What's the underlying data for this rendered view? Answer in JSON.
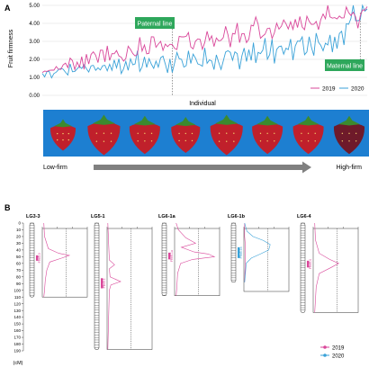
{
  "panels": {
    "a": "A",
    "b": "B"
  },
  "chart_data": [
    {
      "type": "line",
      "panel": "A",
      "ylabel": "Fruit firmness",
      "xlabel": "Individual",
      "ylim": [
        0,
        5
      ],
      "yticks": [
        "0.00",
        "1.00",
        "2.00",
        "3.00",
        "4.00",
        "5.00"
      ],
      "grid": "horizontal",
      "legend_position": "bottom-right",
      "annotations": {
        "paternal": "Paternal line",
        "maternal": "Maternal line"
      },
      "paternal_index": 56,
      "maternal_index": 137,
      "colors": {
        "2019": "#d9479a",
        "2020": "#3aa2d8",
        "label_bg": "#2ea75b"
      },
      "series": [
        {
          "name": "2019",
          "values": [
            1.27,
            1.35,
            1.33,
            1.39,
            1.4,
            1.4,
            1.6,
            1.45,
            1.44,
            1.7,
            1.79,
            1.54,
            2.07,
            1.93,
            1.43,
            1.85,
            1.56,
            2.15,
            1.45,
            2.29,
            1.74,
            2.28,
            2.42,
            2.23,
            1.82,
            2.51,
            2.51,
            1.86,
            2.75,
            1.94,
            2.32,
            2.31,
            2.49,
            2.19,
            2.12,
            1.9,
            2.05,
            2.73,
            2.55,
            2.32,
            2.19,
            2.28,
            3.23,
            2.46,
            2.8,
            2.31,
            2.34,
            3.26,
            3.25,
            2.67,
            2.85,
            3.0,
            2.5,
            2.85,
            2.71,
            2.84,
            2.82,
            2.61,
            2.55,
            3.28,
            3.25,
            3.25,
            3.28,
            3.49,
            2.69,
            2.58,
            3.01,
            3.14,
            3.11,
            2.56,
            2.94,
            3.56,
            3.06,
            3.31,
            2.71,
            3.19,
            3.03,
            3.06,
            3.21,
            3.84,
            3.37,
            2.68,
            3.44,
            3.41,
            4.02,
            2.93,
            3.43,
            3.43,
            2.93,
            3.13,
            3.9,
            3.86,
            4.36,
            3.96,
            3.17,
            3.3,
            3.4,
            3.72,
            3.74,
            3.16,
            3.48,
            4.01,
            3.68,
            3.84,
            4.19,
            3.98,
            3.69,
            4.09,
            3.67,
            4.23,
            3.77,
            4.38,
            3.8,
            3.65,
            4.4,
            4.12,
            3.94,
            3.95,
            4.11,
            3.65,
            4.21,
            4.52,
            4.26,
            5.0,
            4.36,
            4.29,
            4.32,
            4.25,
            4.41,
            4.3,
            4.31,
            4.91,
            4.6,
            4.44,
            4.62,
            4.36,
            3.73,
            4.42,
            4.75,
            4.73,
            4.93
          ]
        },
        {
          "name": "2020",
          "values": [
            1.22,
            1.03,
            1.32,
            1.32,
            0.97,
            1.21,
            1.29,
            1.43,
            1.5,
            1.45,
            1.28,
            1.13,
            1.75,
            1.31,
            1.33,
            1.47,
            1.61,
            1.49,
            1.7,
            1.48,
            1.3,
            1.64,
            1.67,
            1.39,
            1.53,
            1.41,
            1.64,
            1.67,
            1.36,
            1.73,
            1.39,
            1.97,
            1.53,
            2.03,
            1.21,
            1.47,
            1.89,
            1.39,
            2.03,
            1.7,
            1.75,
            2.48,
            1.33,
            1.58,
            2.14,
            1.55,
            2.04,
            1.73,
            1.5,
            1.9,
            1.57,
            2.09,
            2.18,
            1.74,
            1.25,
            2.03,
            1.27,
            1.8,
            2.38,
            2.04,
            2.0,
            1.57,
            1.65,
            2.48,
            1.77,
            2.29,
            2.07,
            1.75,
            1.7,
            1.62,
            2.64,
            1.78,
            1.97,
            1.91,
            1.43,
            2.25,
            1.83,
            1.44,
            1.91,
            2.41,
            2.48,
            2.39,
            1.95,
            2.42,
            2.32,
            1.45,
            2.2,
            2.63,
            1.88,
            2.54,
            1.94,
            2.93,
            1.8,
            2.39,
            2.32,
            2.51,
            3.18,
            2.01,
            2.27,
            3.13,
            1.77,
            2.55,
            2.71,
            2.74,
            2.29,
            2.62,
            2.54,
            3.13,
            1.96,
            2.75,
            3.02,
            3.0,
            3.25,
            2.26,
            2.41,
            3.26,
            2.66,
            2.21,
            3.46,
            2.95,
            2.78,
            2.48,
            2.9,
            2.8,
            3.36,
            2.4,
            3.25,
            2.6,
            3.44,
            3.56,
            2.8,
            3.98,
            3.95,
            4.27,
            5.0,
            4.15,
            4.15,
            4.2,
            5.0,
            4.68,
            4.8
          ]
        }
      ]
    },
    {
      "type": "line",
      "panel": "B",
      "ylabel": "(cM)",
      "ylim": [
        0,
        190
      ],
      "yticks": [
        "0",
        "10",
        "20",
        "30",
        "40",
        "50",
        "60",
        "70",
        "80",
        "90",
        "100",
        "110",
        "120",
        "130",
        "140",
        "150",
        "160",
        "170",
        "180",
        "190"
      ],
      "legend_position": "bottom-right",
      "colors": {
        "2019": "#d9479a",
        "2020": "#3aa2d8"
      },
      "legend": [
        "2019",
        "2020"
      ],
      "linkage_groups": [
        {
          "name": "LG3-3",
          "length": 110,
          "qtl": [
            {
              "series": "2019",
              "start": 48,
              "end": 56,
              "label": "Ffm3-3"
            }
          ],
          "lod": {
            "2019": [
              [
                0,
                0.2
              ],
              [
                20,
                0.3
              ],
              [
                38,
                0.8
              ],
              [
                45,
                2.2
              ],
              [
                48,
                3.6
              ],
              [
                52,
                2.6
              ],
              [
                58,
                1.0
              ],
              [
                70,
                0.6
              ],
              [
                85,
                0.4
              ],
              [
                100,
                0.3
              ],
              [
                110,
                0.2
              ]
            ]
          }
        },
        {
          "name": "LG5-1",
          "length": 188,
          "qtl": [
            {
              "series": "2019",
              "start": 82,
              "end": 97,
              "label": "Ffm5-1"
            }
          ],
          "lod": {
            "2019": [
              [
                0,
                0.1
              ],
              [
                30,
                0.2
              ],
              [
                55,
                0.3
              ],
              [
                62,
                1.0
              ],
              [
                68,
                0.3
              ],
              [
                80,
                0.4
              ],
              [
                87,
                1.8
              ],
              [
                92,
                0.5
              ],
              [
                100,
                0.3
              ],
              [
                140,
                0.2
              ],
              [
                188,
                0.1
              ]
            ]
          }
        },
        {
          "name": "LG6-1a",
          "length": 108,
          "qtl": [
            {
              "series": "2019",
              "start": 44,
              "end": 54,
              "label": "Ffm6-1a"
            }
          ],
          "lod": {
            "2019": [
              [
                0,
                0.2
              ],
              [
                10,
                0.5
              ],
              [
                22,
                1.5
              ],
              [
                30,
                2.8
              ],
              [
                36,
                0.9
              ],
              [
                43,
                2.6
              ],
              [
                46,
                4.5
              ],
              [
                50,
                5.3
              ],
              [
                54,
                2.4
              ],
              [
                60,
                0.8
              ],
              [
                75,
                0.4
              ],
              [
                95,
                0.3
              ],
              [
                108,
                0.2
              ]
            ]
          }
        },
        {
          "name": "LG6-1b",
          "length": 88,
          "qtl": [
            {
              "series": "2020",
              "start": 36,
              "end": 52,
              "label": "Ffm6-1b"
            }
          ],
          "lod": {
            "2019": [
              [
                0,
                0.1
              ],
              [
                20,
                0.1
              ],
              [
                35,
                0.2
              ],
              [
                50,
                0.2
              ],
              [
                88,
                0.1
              ]
            ],
            "2020": [
              [
                0,
                0.1
              ],
              [
                12,
                0.4
              ],
              [
                20,
                1.2
              ],
              [
                26,
                2.6
              ],
              [
                32,
                3.5
              ],
              [
                40,
                3.3
              ],
              [
                46,
                2.2
              ],
              [
                52,
                1.0
              ],
              [
                60,
                0.3
              ],
              [
                75,
                0.2
              ],
              [
                88,
                0.1
              ]
            ]
          }
        },
        {
          "name": "LG6-4",
          "length": 133,
          "qtl": [
            {
              "series": "2019",
              "start": 56,
              "end": 66,
              "label": "Ffm6-4"
            }
          ],
          "lod": {
            "2019": [
              [
                0,
                0.2
              ],
              [
                25,
                0.3
              ],
              [
                45,
                0.8
              ],
              [
                54,
                2.2
              ],
              [
                60,
                3.4
              ],
              [
                66,
                2.4
              ],
              [
                75,
                0.8
              ],
              [
                95,
                0.4
              ],
              [
                133,
                0.2
              ]
            ]
          }
        }
      ]
    }
  ],
  "strip": {
    "low": "Low-firm",
    "high": "High-firm",
    "berry_count": 8,
    "colors": {
      "background": "#1d7fd1",
      "berry": "#c0202b",
      "berry_dark": "#6e1a2a",
      "leaf": "#3c8a2e",
      "arrow": "#808080"
    }
  }
}
